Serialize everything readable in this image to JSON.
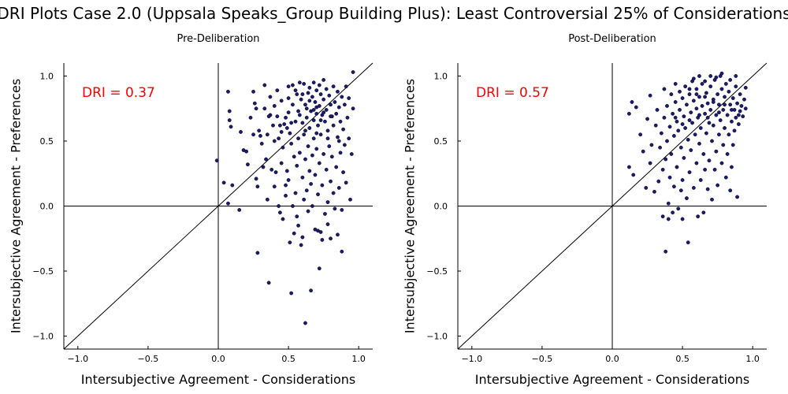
{
  "title": "DRI Plots Case 2.0 (Uppsala Speaks_Group Building Plus): Least Controversial 25% of Considerations",
  "chart_data": [
    {
      "type": "scatter",
      "title": "Pre-Deliberation",
      "annotation": "DRI = 0.37",
      "xlabel": "Intersubjective Agreement - Considerations",
      "ylabel": "Intersubjective Agreement - Preferences",
      "xlim": [
        -1.1,
        1.1
      ],
      "ylim": [
        -1.1,
        1.1
      ],
      "xticks": [
        "−1.0",
        "−0.5",
        "0.0",
        "0.5",
        "1.0"
      ],
      "yticks": [
        "−1.0",
        "−0.5",
        "0.0",
        "0.5",
        "1.0"
      ],
      "grid": false,
      "marker_color": "#1a1a6e",
      "points": [
        [
          -0.01,
          0.35
        ],
        [
          0.04,
          0.18
        ],
        [
          0.07,
          0.88
        ],
        [
          0.08,
          0.73
        ],
        [
          0.08,
          0.66
        ],
        [
          0.09,
          0.61
        ],
        [
          0.07,
          0.02
        ],
        [
          0.1,
          0.16
        ],
        [
          0.16,
          0.57
        ],
        [
          0.15,
          -0.03
        ],
        [
          0.18,
          0.43
        ],
        [
          0.2,
          0.42
        ],
        [
          0.21,
          0.32
        ],
        [
          0.23,
          0.68
        ],
        [
          0.25,
          0.88
        ],
        [
          0.26,
          0.79
        ],
        [
          0.25,
          0.55
        ],
        [
          0.27,
          0.75
        ],
        [
          0.27,
          0.21
        ],
        [
          0.28,
          0.15
        ],
        [
          0.28,
          -0.36
        ],
        [
          0.29,
          0.58
        ],
        [
          0.3,
          0.54
        ],
        [
          0.31,
          0.48
        ],
        [
          0.32,
          0.3
        ],
        [
          0.33,
          0.93
        ],
        [
          0.33,
          0.75
        ],
        [
          0.34,
          0.36
        ],
        [
          0.35,
          0.55
        ],
        [
          0.35,
          0.05
        ],
        [
          0.36,
          -0.59
        ],
        [
          0.37,
          0.84
        ],
        [
          0.37,
          0.7
        ],
        [
          0.38,
          0.28
        ],
        [
          0.39,
          0.62
        ],
        [
          0.4,
          0.77
        ],
        [
          0.4,
          0.15
        ],
        [
          0.41,
          0.26
        ],
        [
          0.42,
          0.89
        ],
        [
          0.42,
          0.69
        ],
        [
          0.43,
          0.52
        ],
        [
          0.43,
          0.0
        ],
        [
          0.44,
          -0.05
        ],
        [
          0.45,
          0.81
        ],
        [
          0.45,
          0.33
        ],
        [
          0.46,
          0.45
        ],
        [
          0.46,
          -0.1
        ],
        [
          0.47,
          0.63
        ],
        [
          0.48,
          0.16
        ],
        [
          0.48,
          0.08
        ],
        [
          0.49,
          0.6
        ],
        [
          0.49,
          0.27
        ],
        [
          0.5,
          0.83
        ],
        [
          0.5,
          0.72
        ],
        [
          0.5,
          0.2
        ],
        [
          0.51,
          0.56
        ],
        [
          0.51,
          -0.28
        ],
        [
          0.52,
          0.48
        ],
        [
          0.52,
          -0.67
        ],
        [
          0.53,
          0.93
        ],
        [
          0.53,
          0.78
        ],
        [
          0.53,
          0.0
        ],
        [
          0.54,
          0.38
        ],
        [
          0.54,
          -0.21
        ],
        [
          0.55,
          0.65
        ],
        [
          0.55,
          0.1
        ],
        [
          0.56,
          0.86
        ],
        [
          0.56,
          0.31
        ],
        [
          0.56,
          -0.08
        ],
        [
          0.57,
          0.73
        ],
        [
          0.57,
          0.52
        ],
        [
          0.57,
          -0.15
        ],
        [
          0.58,
          0.95
        ],
        [
          0.58,
          0.41
        ],
        [
          0.59,
          0.82
        ],
        [
          0.59,
          -0.3
        ],
        [
          0.6,
          0.64
        ],
        [
          0.6,
          0.22
        ],
        [
          0.6,
          -0.24
        ],
        [
          0.61,
          0.94
        ],
        [
          0.61,
          0.55
        ],
        [
          0.61,
          0.05
        ],
        [
          0.62,
          0.78
        ],
        [
          0.62,
          0.36
        ],
        [
          0.62,
          -0.9
        ],
        [
          0.63,
          0.68
        ],
        [
          0.63,
          0.12
        ],
        [
          0.64,
          0.87
        ],
        [
          0.64,
          0.46
        ],
        [
          0.64,
          -0.04
        ],
        [
          0.65,
          0.91
        ],
        [
          0.65,
          0.6
        ],
        [
          0.65,
          0.27
        ],
        [
          0.66,
          0.73
        ],
        [
          0.66,
          0.17
        ],
        [
          0.66,
          -0.65
        ],
        [
          0.67,
          0.84
        ],
        [
          0.67,
          0.39
        ],
        [
          0.67,
          0.0
        ],
        [
          0.68,
          0.95
        ],
        [
          0.68,
          0.66
        ],
        [
          0.68,
          0.52
        ],
        [
          0.69,
          0.8
        ],
        [
          0.69,
          0.24
        ],
        [
          0.69,
          -0.18
        ],
        [
          0.7,
          0.89
        ],
        [
          0.7,
          0.71
        ],
        [
          0.7,
          0.44
        ],
        [
          0.71,
          0.62
        ],
        [
          0.71,
          0.09
        ],
        [
          0.71,
          -0.19
        ],
        [
          0.72,
          0.93
        ],
        [
          0.72,
          0.77
        ],
        [
          0.72,
          0.33
        ],
        [
          0.72,
          -0.48
        ],
        [
          0.73,
          0.86
        ],
        [
          0.73,
          0.55
        ],
        [
          0.73,
          -0.2
        ],
        [
          0.74,
          0.7
        ],
        [
          0.74,
          0.16
        ],
        [
          0.74,
          -0.26
        ],
        [
          0.75,
          0.97
        ],
        [
          0.75,
          0.82
        ],
        [
          0.75,
          0.4
        ],
        [
          0.76,
          0.65
        ],
        [
          0.76,
          -0.06
        ],
        [
          0.77,
          0.9
        ],
        [
          0.77,
          0.74
        ],
        [
          0.77,
          0.28
        ],
        [
          0.78,
          0.58
        ],
        [
          0.78,
          0.03
        ],
        [
          0.78,
          -0.14
        ],
        [
          0.79,
          0.85
        ],
        [
          0.79,
          0.46
        ],
        [
          0.8,
          0.78
        ],
        [
          0.8,
          0.19
        ],
        [
          0.8,
          -0.25
        ],
        [
          0.81,
          0.69
        ],
        [
          0.81,
          0.38
        ],
        [
          0.82,
          0.92
        ],
        [
          0.82,
          0.62
        ],
        [
          0.82,
          0.1
        ],
        [
          0.83,
          0.8
        ],
        [
          0.83,
          -0.02
        ],
        [
          0.84,
          0.71
        ],
        [
          0.84,
          0.3
        ],
        [
          0.85,
          0.88
        ],
        [
          0.85,
          0.53
        ],
        [
          0.85,
          -0.22
        ],
        [
          0.86,
          0.76
        ],
        [
          0.86,
          0.14
        ],
        [
          0.87,
          0.65
        ],
        [
          0.87,
          0.41
        ],
        [
          0.88,
          0.84
        ],
        [
          0.88,
          -0.03
        ],
        [
          0.88,
          -0.35
        ],
        [
          0.89,
          0.59
        ],
        [
          0.89,
          0.26
        ],
        [
          0.9,
          0.78
        ],
        [
          0.9,
          0.47
        ],
        [
          0.91,
          0.92
        ],
        [
          0.91,
          0.18
        ],
        [
          0.92,
          0.68
        ],
        [
          0.93,
          0.83
        ],
        [
          0.93,
          0.52
        ],
        [
          0.94,
          0.05
        ],
        [
          0.95,
          0.4
        ],
        [
          0.96,
          1.03
        ],
        [
          0.96,
          0.75
        ],
        [
          0.5,
          0.92
        ],
        [
          0.55,
          0.89
        ],
        [
          0.6,
          0.86
        ],
        [
          0.65,
          0.81
        ],
        [
          0.7,
          0.76
        ],
        [
          0.75,
          0.72
        ],
        [
          0.8,
          0.69
        ],
        [
          0.58,
          0.7
        ],
        [
          0.63,
          0.75
        ],
        [
          0.68,
          0.74
        ],
        [
          0.73,
          0.66
        ],
        [
          0.48,
          0.68
        ],
        [
          0.44,
          0.62
        ],
        [
          0.52,
          0.64
        ],
        [
          0.62,
          0.58
        ],
        [
          0.7,
          0.56
        ],
        [
          0.78,
          0.52
        ],
        [
          0.86,
          0.5
        ],
        [
          0.4,
          0.5
        ],
        [
          0.45,
          0.57
        ],
        [
          0.36,
          0.69
        ]
      ]
    },
    {
      "type": "scatter",
      "title": "Post-Deliberation",
      "annotation": "DRI = 0.57",
      "xlabel": "Intersubjective Agreement - Considerations",
      "ylabel": "Intersubjective Agreement - Preferences",
      "xlim": [
        -1.1,
        1.1
      ],
      "ylim": [
        -1.1,
        1.1
      ],
      "xticks": [
        "−1.0",
        "−0.5",
        "0.0",
        "0.5",
        "1.0"
      ],
      "yticks": [
        "−1.0",
        "−0.5",
        "0.0",
        "0.5",
        "1.0"
      ],
      "grid": false,
      "marker_color": "#1a1a6e",
      "points": [
        [
          0.12,
          0.71
        ],
        [
          0.14,
          0.8
        ],
        [
          0.17,
          0.76
        ],
        [
          0.12,
          0.3
        ],
        [
          0.15,
          0.24
        ],
        [
          0.2,
          0.55
        ],
        [
          0.22,
          0.42
        ],
        [
          0.24,
          0.14
        ],
        [
          0.25,
          0.67
        ],
        [
          0.27,
          0.85
        ],
        [
          0.27,
          0.33
        ],
        [
          0.28,
          0.47
        ],
        [
          0.3,
          0.11
        ],
        [
          0.31,
          0.62
        ],
        [
          0.32,
          0.74
        ],
        [
          0.33,
          0.19
        ],
        [
          0.34,
          0.45
        ],
        [
          0.35,
          0.56
        ],
        [
          0.36,
          0.28
        ],
        [
          0.36,
          -0.08
        ],
        [
          0.37,
          0.9
        ],
        [
          0.37,
          0.68
        ],
        [
          0.38,
          0.36
        ],
        [
          0.38,
          -0.35
        ],
        [
          0.39,
          0.77
        ],
        [
          0.39,
          0.5
        ],
        [
          0.4,
          0.02
        ],
        [
          0.4,
          -0.1
        ],
        [
          0.41,
          0.61
        ],
        [
          0.41,
          0.22
        ],
        [
          0.42,
          0.86
        ],
        [
          0.42,
          0.4
        ],
        [
          0.43,
          0.71
        ],
        [
          0.43,
          -0.05
        ],
        [
          0.44,
          0.54
        ],
        [
          0.44,
          0.15
        ],
        [
          0.45,
          0.94
        ],
        [
          0.45,
          0.8
        ],
        [
          0.46,
          0.65
        ],
        [
          0.46,
          0.3
        ],
        [
          0.47,
          0.58
        ],
        [
          0.47,
          -0.02
        ],
        [
          0.48,
          0.88
        ],
        [
          0.48,
          0.74
        ],
        [
          0.49,
          0.45
        ],
        [
          0.49,
          0.12
        ],
        [
          0.5,
          0.83
        ],
        [
          0.5,
          0.2
        ],
        [
          0.5,
          -0.1
        ],
        [
          0.51,
          0.69
        ],
        [
          0.51,
          0.37
        ],
        [
          0.52,
          0.92
        ],
        [
          0.52,
          0.6
        ],
        [
          0.53,
          0.78
        ],
        [
          0.53,
          0.06
        ],
        [
          0.54,
          0.51
        ],
        [
          0.54,
          -0.28
        ],
        [
          0.55,
          0.86
        ],
        [
          0.55,
          0.26
        ],
        [
          0.56,
          0.72
        ],
        [
          0.56,
          0.43
        ],
        [
          0.57,
          0.96
        ],
        [
          0.57,
          0.64
        ],
        [
          0.58,
          0.81
        ],
        [
          0.58,
          0.14
        ],
        [
          0.59,
          0.55
        ],
        [
          0.6,
          0.9
        ],
        [
          0.6,
          0.75
        ],
        [
          0.6,
          0.33
        ],
        [
          0.61,
          0.68
        ],
        [
          0.61,
          -0.08
        ],
        [
          0.62,
          0.84
        ],
        [
          0.62,
          0.48
        ],
        [
          0.63,
          0.6
        ],
        [
          0.63,
          0.2
        ],
        [
          0.64,
          0.94
        ],
        [
          0.64,
          0.77
        ],
        [
          0.65,
          0.4
        ],
        [
          0.65,
          -0.05
        ],
        [
          0.66,
          0.71
        ],
        [
          0.66,
          0.28
        ],
        [
          0.67,
          0.87
        ],
        [
          0.67,
          0.56
        ],
        [
          0.68,
          0.79
        ],
        [
          0.68,
          0.13
        ],
        [
          0.69,
          0.64
        ],
        [
          0.69,
          0.35
        ],
        [
          0.7,
          0.92
        ],
        [
          0.7,
          0.74
        ],
        [
          0.71,
          0.5
        ],
        [
          0.71,
          0.05
        ],
        [
          0.72,
          0.82
        ],
        [
          0.72,
          0.62
        ],
        [
          0.73,
          0.97
        ],
        [
          0.73,
          0.28
        ],
        [
          0.74,
          0.7
        ],
        [
          0.74,
          0.42
        ],
        [
          0.75,
          0.86
        ],
        [
          0.75,
          0.16
        ],
        [
          0.76,
          0.78
        ],
        [
          0.76,
          0.55
        ],
        [
          0.77,
          1.0
        ],
        [
          0.77,
          0.66
        ],
        [
          0.78,
          0.9
        ],
        [
          0.78,
          0.33
        ],
        [
          0.79,
          0.74
        ],
        [
          0.79,
          0.47
        ],
        [
          0.8,
          0.84
        ],
        [
          0.8,
          0.6
        ],
        [
          0.81,
          0.94
        ],
        [
          0.81,
          0.22
        ],
        [
          0.82,
          0.7
        ],
        [
          0.82,
          0.4
        ],
        [
          0.83,
          0.88
        ],
        [
          0.83,
          0.55
        ],
        [
          0.84,
          0.78
        ],
        [
          0.84,
          0.12
        ],
        [
          0.85,
          0.65
        ],
        [
          0.85,
          0.3
        ],
        [
          0.86,
          0.83
        ],
        [
          0.86,
          0.47
        ],
        [
          0.87,
          0.74
        ],
        [
          0.87,
          0.58
        ],
        [
          0.88,
          0.92
        ],
        [
          0.88,
          0.68
        ],
        [
          0.89,
          0.79
        ],
        [
          0.89,
          0.07
        ],
        [
          0.9,
          0.63
        ],
        [
          0.91,
          0.86
        ],
        [
          0.91,
          0.73
        ],
        [
          0.92,
          0.77
        ],
        [
          0.93,
          0.69
        ],
        [
          0.94,
          0.82
        ],
        [
          0.95,
          0.91
        ],
        [
          0.95,
          0.75
        ],
        [
          0.58,
          0.98
        ],
        [
          0.62,
          1.0
        ],
        [
          0.66,
          0.96
        ],
        [
          0.7,
          1.0
        ],
        [
          0.74,
          0.99
        ],
        [
          0.78,
          1.02
        ],
        [
          0.84,
          0.97
        ],
        [
          0.88,
          1.0
        ],
        [
          0.55,
          0.9
        ],
        [
          0.6,
          0.86
        ],
        [
          0.66,
          0.84
        ],
        [
          0.72,
          0.8
        ],
        [
          0.76,
          0.72
        ],
        [
          0.8,
          0.78
        ],
        [
          0.85,
          0.74
        ],
        [
          0.9,
          0.7
        ],
        [
          0.45,
          0.68
        ],
        [
          0.5,
          0.63
        ],
        [
          0.55,
          0.66
        ],
        [
          0.62,
          0.7
        ],
        [
          0.68,
          0.68
        ]
      ]
    }
  ]
}
